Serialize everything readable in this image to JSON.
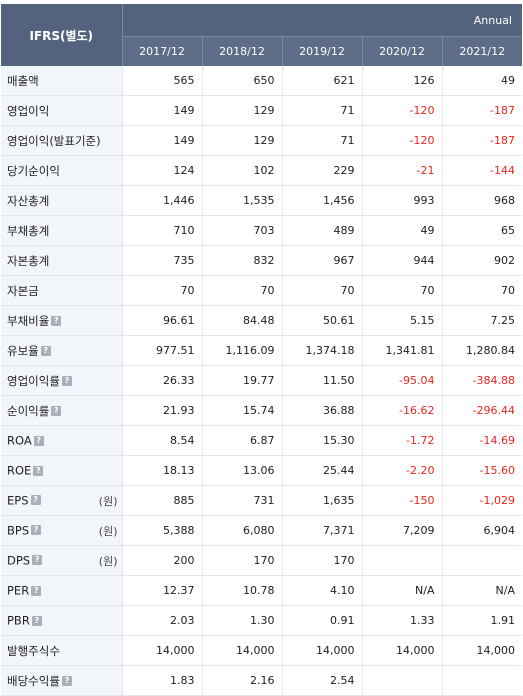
{
  "header": {
    "corner": "IFRS(별도)",
    "period": "Annual",
    "years": [
      "2017/12",
      "2018/12",
      "2019/12",
      "2020/12",
      "2021/12"
    ]
  },
  "rows": [
    {
      "label": "매출액",
      "help": false,
      "unit": "",
      "values": [
        "565",
        "650",
        "621",
        "126",
        "49"
      ]
    },
    {
      "label": "영업이익",
      "help": false,
      "unit": "",
      "values": [
        "149",
        "129",
        "71",
        "-120",
        "-187"
      ]
    },
    {
      "label": "영업이익(발표기준)",
      "help": false,
      "unit": "",
      "values": [
        "149",
        "129",
        "71",
        "-120",
        "-187"
      ]
    },
    {
      "label": "당기순이익",
      "help": false,
      "unit": "",
      "values": [
        "124",
        "102",
        "229",
        "-21",
        "-144"
      ]
    },
    {
      "label": "자산총계",
      "help": false,
      "unit": "",
      "values": [
        "1,446",
        "1,535",
        "1,456",
        "993",
        "968"
      ]
    },
    {
      "label": "부채총계",
      "help": false,
      "unit": "",
      "values": [
        "710",
        "703",
        "489",
        "49",
        "65"
      ]
    },
    {
      "label": "자본총계",
      "help": false,
      "unit": "",
      "values": [
        "735",
        "832",
        "967",
        "944",
        "902"
      ]
    },
    {
      "label": "자본금",
      "help": false,
      "unit": "",
      "values": [
        "70",
        "70",
        "70",
        "70",
        "70"
      ]
    },
    {
      "label": "부채비율",
      "help": true,
      "unit": "",
      "values": [
        "96.61",
        "84.48",
        "50.61",
        "5.15",
        "7.25"
      ]
    },
    {
      "label": "유보율",
      "help": true,
      "unit": "",
      "values": [
        "977.51",
        "1,116.09",
        "1,374.18",
        "1,341.81",
        "1,280.84"
      ]
    },
    {
      "label": "영업이익률",
      "help": true,
      "unit": "",
      "values": [
        "26.33",
        "19.77",
        "11.50",
        "-95.04",
        "-384.88"
      ]
    },
    {
      "label": "순이익률",
      "help": true,
      "unit": "",
      "values": [
        "21.93",
        "15.74",
        "36.88",
        "-16.62",
        "-296.44"
      ]
    },
    {
      "label": "ROA",
      "help": true,
      "unit": "",
      "values": [
        "8.54",
        "6.87",
        "15.30",
        "-1.72",
        "-14.69"
      ]
    },
    {
      "label": "ROE",
      "help": true,
      "unit": "",
      "values": [
        "18.13",
        "13.06",
        "25.44",
        "-2.20",
        "-15.60"
      ]
    },
    {
      "label": "EPS",
      "help": true,
      "unit": "(원)",
      "values": [
        "885",
        "731",
        "1,635",
        "-150",
        "-1,029"
      ]
    },
    {
      "label": "BPS",
      "help": true,
      "unit": "(원)",
      "values": [
        "5,388",
        "6,080",
        "7,371",
        "7,209",
        "6,904"
      ]
    },
    {
      "label": "DPS",
      "help": true,
      "unit": "(원)",
      "values": [
        "200",
        "170",
        "170",
        "",
        ""
      ]
    },
    {
      "label": "PER",
      "help": true,
      "unit": "",
      "values": [
        "12.37",
        "10.78",
        "4.10",
        "N/A",
        "N/A"
      ]
    },
    {
      "label": "PBR",
      "help": true,
      "unit": "",
      "values": [
        "2.03",
        "1.30",
        "0.91",
        "1.33",
        "1.91"
      ]
    },
    {
      "label": "발행주식수",
      "help": false,
      "unit": "",
      "values": [
        "14,000",
        "14,000",
        "14,000",
        "14,000",
        "14,000"
      ]
    },
    {
      "label": "배당수익률",
      "help": true,
      "unit": "",
      "values": [
        "1.83",
        "2.16",
        "2.54",
        "",
        ""
      ]
    }
  ],
  "help_icon_glyph": "?",
  "colors": {
    "header_bg": "#53637d",
    "label_bg": "#f2f5fa",
    "negative": "#e8261d"
  }
}
